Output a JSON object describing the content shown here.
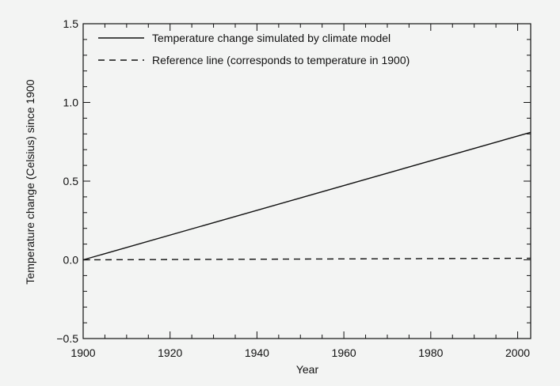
{
  "chart_data": {
    "type": "line",
    "xlabel": "Year",
    "ylabel": "Temperature change (Celsius) since 1900",
    "xlim": [
      1900,
      2003
    ],
    "ylim": [
      -0.5,
      1.5
    ],
    "x_ticks": [
      1900,
      1920,
      1940,
      1960,
      1980,
      2000
    ],
    "x_tick_labels": [
      "1900",
      "1920",
      "1940",
      "1960",
      "1980",
      "2000"
    ],
    "y_ticks": [
      -0.5,
      0.0,
      0.5,
      1.0,
      1.5
    ],
    "y_tick_labels": [
      "−0.5",
      "0.0",
      "0.5",
      "1.0",
      "1.5"
    ],
    "grid": false,
    "legend_position": "top-left",
    "series": [
      {
        "name": "Temperature change simulated by climate model",
        "style": "solid",
        "color": "#111111",
        "x": [
          1900,
          2003
        ],
        "y": [
          0.0,
          0.81
        ]
      },
      {
        "name": "Reference line (corresponds to temperature in 1900)",
        "style": "dashed",
        "color": "#111111",
        "x": [
          1900,
          2003
        ],
        "y": [
          0.0,
          0.01
        ]
      }
    ]
  }
}
